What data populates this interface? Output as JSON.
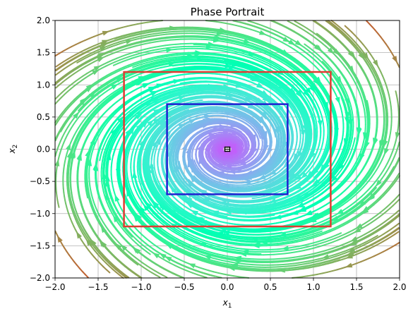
{
  "chart_data": {
    "type": "streamplot",
    "title": "Phase Portrait",
    "xlabel": "x",
    "xlabel_sub": "1",
    "ylabel": "x",
    "ylabel_sub": "2",
    "xlim": [
      -2.0,
      2.0
    ],
    "ylim": [
      -2.0,
      2.0
    ],
    "x_ticks": [
      "−2.0",
      "−1.5",
      "−1.0",
      "−0.5",
      "0.0",
      "0.5",
      "1.0",
      "1.5",
      "2.0"
    ],
    "x_tick_values": [
      -2.0,
      -1.5,
      -1.0,
      -0.5,
      0.0,
      0.5,
      1.0,
      1.5,
      2.0
    ],
    "y_ticks": [
      "2.0",
      "1.5",
      "1.0",
      "0.5",
      "0.0",
      "−0.5",
      "−1.0",
      "−1.5",
      "−2.0"
    ],
    "y_tick_values": [
      2.0,
      1.5,
      1.0,
      0.5,
      0.0,
      -0.5,
      -1.0,
      -1.5,
      -2.0
    ],
    "grid": true,
    "colormap": "rainbow",
    "equilibrium": {
      "x": 0.0,
      "y": 0.0,
      "color": "#000000"
    },
    "rectangles": [
      {
        "name": "outer",
        "x": [
          -1.2,
          1.2
        ],
        "y": [
          -1.2,
          1.2
        ],
        "color": "#e03c31"
      },
      {
        "name": "inner",
        "x": [
          -0.7,
          0.7
        ],
        "y": [
          -0.7,
          0.7
        ],
        "color": "#1f1fd1"
      }
    ],
    "vector_field": {
      "a11": -0.25,
      "a12": 1.0,
      "a21": -1.0,
      "a22": -0.25
    }
  }
}
